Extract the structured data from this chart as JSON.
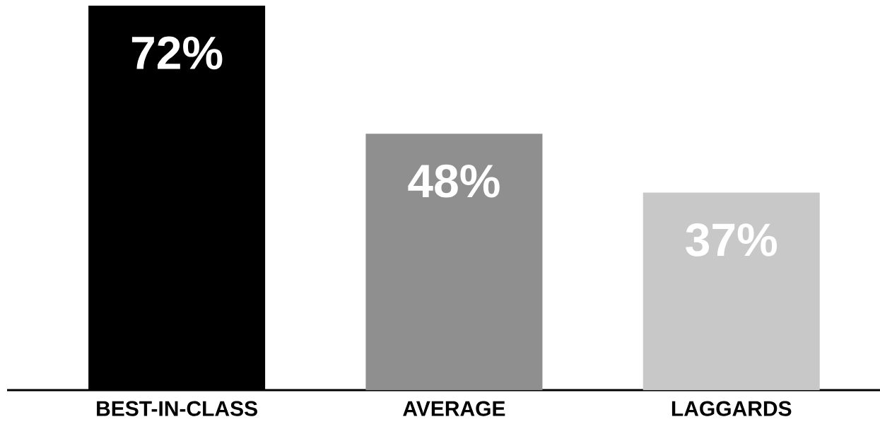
{
  "chart_data": {
    "type": "bar",
    "categories": [
      "BEST-IN-CLASS",
      "AVERAGE",
      "LAGGARDS"
    ],
    "values": [
      72,
      48,
      37
    ],
    "colors": [
      "#000000",
      "#8f8f8f",
      "#c8c8c8"
    ],
    "value_labels": [
      "72%",
      "48%",
      "37%"
    ]
  }
}
